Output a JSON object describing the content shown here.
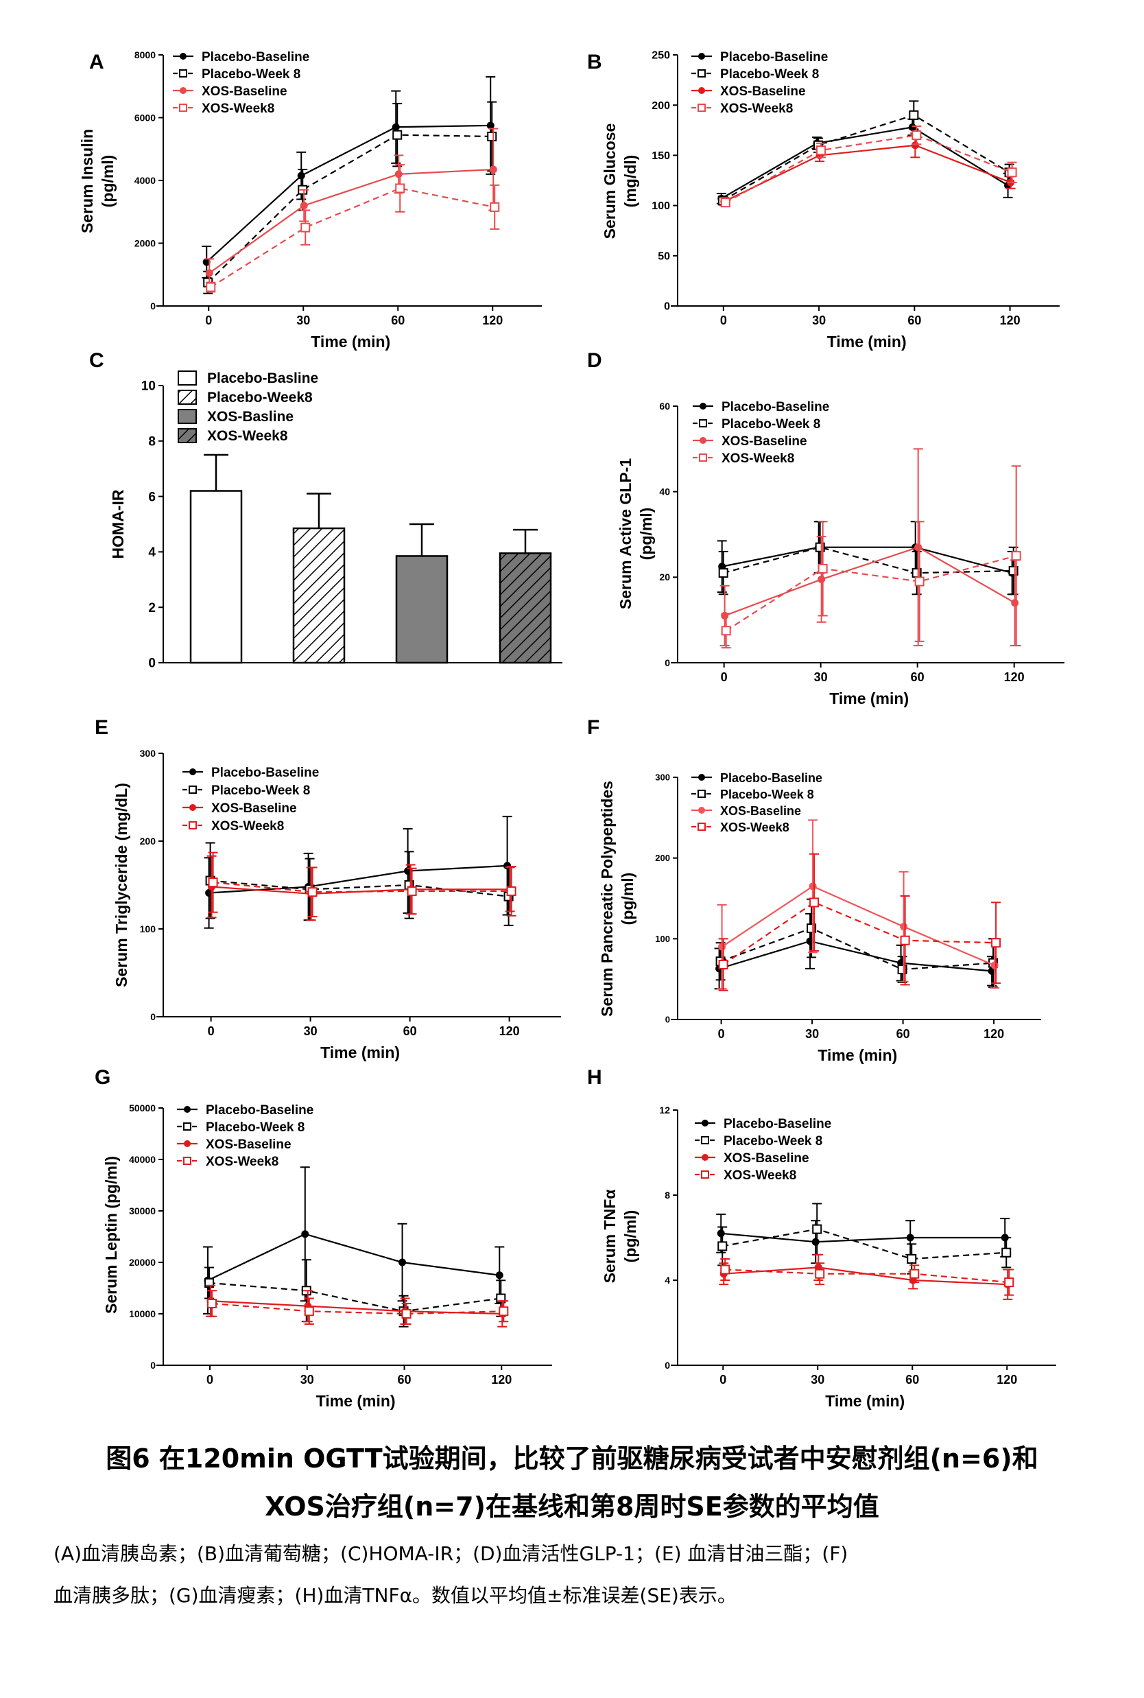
{
  "chart_data": [
    {
      "panel": "A",
      "type": "line",
      "ylabel": [
        "Serum Insulin",
        "(pg/ml)"
      ],
      "xlabel": "Time (min)",
      "x": [
        0,
        30,
        60,
        120
      ],
      "xticks": [
        "0",
        "30",
        "60",
        "120"
      ],
      "ylim": [
        0,
        8000
      ],
      "yticks": [
        0,
        2000,
        4000,
        6000,
        8000
      ],
      "series": [
        {
          "name": "Placebo-Baseline",
          "color": "#000000",
          "dash": false,
          "marker": "dot",
          "values": [
            1400,
            4150,
            5700,
            5750
          ],
          "err": [
            500,
            750,
            1150,
            1550
          ]
        },
        {
          "name": "Placebo-Week 8",
          "color": "#000000",
          "dash": true,
          "marker": "square",
          "values": [
            750,
            3700,
            5450,
            5400
          ],
          "err": [
            350,
            650,
            1000,
            1100
          ]
        },
        {
          "name": "XOS-Baseline",
          "color": "#e8494d",
          "dash": false,
          "marker": "dot",
          "values": [
            1050,
            3200,
            4200,
            4350
          ],
          "err": [
            450,
            500,
            600,
            1300
          ]
        },
        {
          "name": "XOS-Week8",
          "color": "#e8494d",
          "dash": true,
          "marker": "square",
          "values": [
            600,
            2500,
            3750,
            3150
          ],
          "err": [
            150,
            550,
            750,
            700
          ]
        }
      ]
    },
    {
      "panel": "B",
      "type": "line",
      "ylabel": [
        "Serum Glucose",
        "(mg/dl)"
      ],
      "xlabel": "Time (min)",
      "x": [
        0,
        30,
        60,
        120
      ],
      "xticks": [
        "0",
        "30",
        "60",
        "120"
      ],
      "ylim": [
        0,
        250
      ],
      "yticks": [
        0,
        50,
        100,
        150,
        200,
        250
      ],
      "series": [
        {
          "name": "Placebo-Baseline",
          "color": "#000000",
          "dash": false,
          "marker": "dot",
          "values": [
            107,
            162,
            178,
            120
          ],
          "err": [
            5,
            6,
            8,
            12
          ]
        },
        {
          "name": "Placebo-Week 8",
          "color": "#000000",
          "dash": true,
          "marker": "square",
          "values": [
            105,
            160,
            190,
            133
          ],
          "err": [
            4,
            7,
            14,
            8
          ]
        },
        {
          "name": "XOS-Baseline",
          "color": "#e31a1c",
          "dash": false,
          "marker": "dot",
          "values": [
            104,
            150,
            160,
            123
          ],
          "err": [
            4,
            6,
            12,
            6
          ]
        },
        {
          "name": "XOS-Week8",
          "color": "#e8494d",
          "dash": true,
          "marker": "square",
          "values": [
            103,
            155,
            170,
            133
          ],
          "err": [
            4,
            7,
            9,
            10
          ]
        }
      ]
    },
    {
      "panel": "C",
      "type": "bar",
      "ylabel": [
        "HOMA-IR"
      ],
      "xlabel": "",
      "ylim": [
        0,
        10
      ],
      "yticks": [
        0,
        2,
        4,
        6,
        8,
        10
      ],
      "categories": [
        "Placebo-Basline",
        "Placebo-Week8",
        "XOS-Basline",
        "XOS-Week8"
      ],
      "values": [
        6.2,
        4.85,
        3.85,
        3.95
      ],
      "err": [
        1.3,
        1.25,
        1.15,
        0.85
      ],
      "fills": [
        "white",
        "hatch-light",
        "gray",
        "hatch-dark"
      ]
    },
    {
      "panel": "D",
      "type": "line",
      "ylabel": [
        "Serum Active GLP-1",
        "(pg/ml)"
      ],
      "xlabel": "Time (min)",
      "x": [
        0,
        30,
        60,
        120
      ],
      "xticks": [
        "0",
        "30",
        "60",
        "120"
      ],
      "ylim": [
        0,
        60
      ],
      "yticks": [
        0,
        20,
        40,
        60
      ],
      "series": [
        {
          "name": "Placebo-Baseline",
          "color": "#000000",
          "dash": false,
          "marker": "dot",
          "values": [
            22.5,
            27,
            27,
            21
          ],
          "err": [
            6,
            6,
            6,
            5
          ]
        },
        {
          "name": "Placebo-Week 8",
          "color": "#000000",
          "dash": true,
          "marker": "square",
          "values": [
            21,
            27,
            21,
            21.5
          ],
          "err": [
            5,
            6,
            5,
            5.5
          ]
        },
        {
          "name": "XOS-Baseline",
          "color": "#e8494d",
          "dash": false,
          "marker": "dot",
          "values": [
            11,
            19.5,
            27,
            14
          ],
          "err": [
            7,
            10,
            23,
            10
          ]
        },
        {
          "name": "XOS-Week8",
          "color": "#e8494d",
          "dash": true,
          "marker": "square",
          "values": [
            7.5,
            22,
            19,
            25
          ],
          "err": [
            4,
            11,
            14,
            21
          ]
        }
      ]
    },
    {
      "panel": "E",
      "type": "line",
      "ylabel": [
        "Serum Triglyceride (mg/dL)"
      ],
      "xlabel": "Time (min)",
      "x": [
        0,
        30,
        60,
        120
      ],
      "xticks": [
        "0",
        "30",
        "60",
        "120"
      ],
      "ylim": [
        0,
        300
      ],
      "yticks": [
        0,
        100,
        200,
        300
      ],
      "series": [
        {
          "name": "Placebo-Baseline",
          "color": "#000000",
          "dash": false,
          "marker": "dot",
          "values": [
            141,
            148,
            166,
            172
          ],
          "err": [
            40,
            38,
            48,
            56
          ]
        },
        {
          "name": "Placebo-Week 8",
          "color": "#000000",
          "dash": true,
          "marker": "square",
          "values": [
            155,
            145,
            150,
            137
          ],
          "err": [
            43,
            35,
            38,
            33
          ]
        },
        {
          "name": "XOS-Baseline",
          "color": "#e31a1c",
          "dash": false,
          "marker": "dot",
          "values": [
            148,
            140,
            145,
            145
          ],
          "err": [
            35,
            30,
            28,
            25
          ]
        },
        {
          "name": "XOS-Week8",
          "color": "#e31a1c",
          "dash": true,
          "marker": "square",
          "values": [
            153,
            142,
            143,
            143
          ],
          "err": [
            34,
            28,
            26,
            28
          ]
        }
      ]
    },
    {
      "panel": "F",
      "type": "line",
      "ylabel": [
        "Serum Pancreatic Polypeptides",
        "(pg/ml)"
      ],
      "xlabel": "Time (min)",
      "x": [
        0,
        30,
        60,
        120
      ],
      "xticks": [
        "0",
        "30",
        "60",
        "120"
      ],
      "ylim": [
        0,
        300
      ],
      "yticks": [
        0,
        100,
        200,
        300
      ],
      "series": [
        {
          "name": "Placebo-Baseline",
          "color": "#000000",
          "dash": false,
          "marker": "dot",
          "values": [
            63,
            97,
            70,
            60
          ],
          "err": [
            25,
            34,
            22,
            18
          ]
        },
        {
          "name": "Placebo-Week 8",
          "color": "#000000",
          "dash": true,
          "marker": "square",
          "values": [
            72,
            113,
            62,
            70
          ],
          "err": [
            23,
            36,
            16,
            30
          ]
        },
        {
          "name": "XOS-Baseline",
          "color": "#f0555a",
          "dash": false,
          "marker": "dot",
          "values": [
            90,
            165,
            115,
            67
          ],
          "err": [
            52,
            82,
            68,
            28
          ]
        },
        {
          "name": "XOS-Week8",
          "color": "#e31a1c",
          "dash": true,
          "marker": "square",
          "values": [
            68,
            145,
            98,
            95
          ],
          "err": [
            32,
            60,
            55,
            50
          ]
        }
      ]
    },
    {
      "panel": "G",
      "type": "line",
      "ylabel": [
        "Serum Leptin (pg/ml)"
      ],
      "xlabel": "Time (min)",
      "x": [
        0,
        30,
        60,
        120
      ],
      "xticks": [
        "0",
        "30",
        "60",
        "120"
      ],
      "ylim": [
        0,
        50000
      ],
      "yticks": [
        0,
        10000,
        20000,
        30000,
        40000,
        50000
      ],
      "series": [
        {
          "name": "Placebo-Baseline",
          "color": "#000000",
          "dash": false,
          "marker": "dot",
          "values": [
            16500,
            25500,
            20000,
            17500
          ],
          "err": [
            6500,
            13000,
            7500,
            5500
          ]
        },
        {
          "name": "Placebo-Week 8",
          "color": "#000000",
          "dash": true,
          "marker": "square",
          "values": [
            16000,
            14500,
            10500,
            13000
          ],
          "err": [
            3000,
            6000,
            3000,
            3500
          ]
        },
        {
          "name": "XOS-Baseline",
          "color": "#e31a1c",
          "dash": false,
          "marker": "dot",
          "values": [
            12500,
            11500,
            10500,
            10000
          ],
          "err": [
            3000,
            3000,
            2500,
            2500
          ]
        },
        {
          "name": "XOS-Week8",
          "color": "#e31a1c",
          "dash": true,
          "marker": "square",
          "values": [
            12000,
            10500,
            10000,
            10500
          ],
          "err": [
            2500,
            2500,
            2000,
            2000
          ]
        }
      ]
    },
    {
      "panel": "H",
      "type": "line",
      "ylabel": [
        "Serum TNFα",
        "(pg/ml)"
      ],
      "xlabel": "Time (min)",
      "x": [
        0,
        30,
        60,
        120
      ],
      "xticks": [
        "0",
        "30",
        "60",
        "120"
      ],
      "ylim": [
        0,
        12
      ],
      "yticks": [
        0,
        4,
        8,
        12
      ],
      "series": [
        {
          "name": "Placebo-Baseline",
          "color": "#000000",
          "dash": false,
          "marker": "dot",
          "values": [
            6.2,
            5.8,
            6.0,
            6.0
          ],
          "err": [
            0.9,
            1.0,
            0.8,
            0.9
          ]
        },
        {
          "name": "Placebo-Week 8",
          "color": "#000000",
          "dash": true,
          "marker": "square",
          "values": [
            5.6,
            6.4,
            5.0,
            5.3
          ],
          "err": [
            0.9,
            1.2,
            0.7,
            0.7
          ]
        },
        {
          "name": "XOS-Baseline",
          "color": "#e31a1c",
          "dash": false,
          "marker": "dot",
          "values": [
            4.3,
            4.6,
            4.0,
            3.8
          ],
          "err": [
            0.5,
            0.6,
            0.4,
            0.7
          ]
        },
        {
          "name": "XOS-Week8",
          "color": "#e31a1c",
          "dash": true,
          "marker": "square",
          "values": [
            4.5,
            4.3,
            4.3,
            3.9
          ],
          "err": [
            0.5,
            0.5,
            0.4,
            0.6
          ]
        }
      ]
    }
  ],
  "caption": {
    "title_line1": "图6 在120min OGTT试验期间，比较了前驱糖尿病受试者中安慰剂组(n=6)和",
    "title_line2": "XOS治疗组(n=7)在基线和第8周时SE参数的平均值",
    "text_line1": "(A)血清胰岛素；(B)血清葡萄糖；(C)HOMA-IR；(D)血清活性GLP-1；(E)   血清甘油三酯；(F)",
    "text_line2": "血清胰多肽；(G)血清瘦素；(H)血清TNFα。数值以平均值±标准误差(SE)表示。"
  }
}
